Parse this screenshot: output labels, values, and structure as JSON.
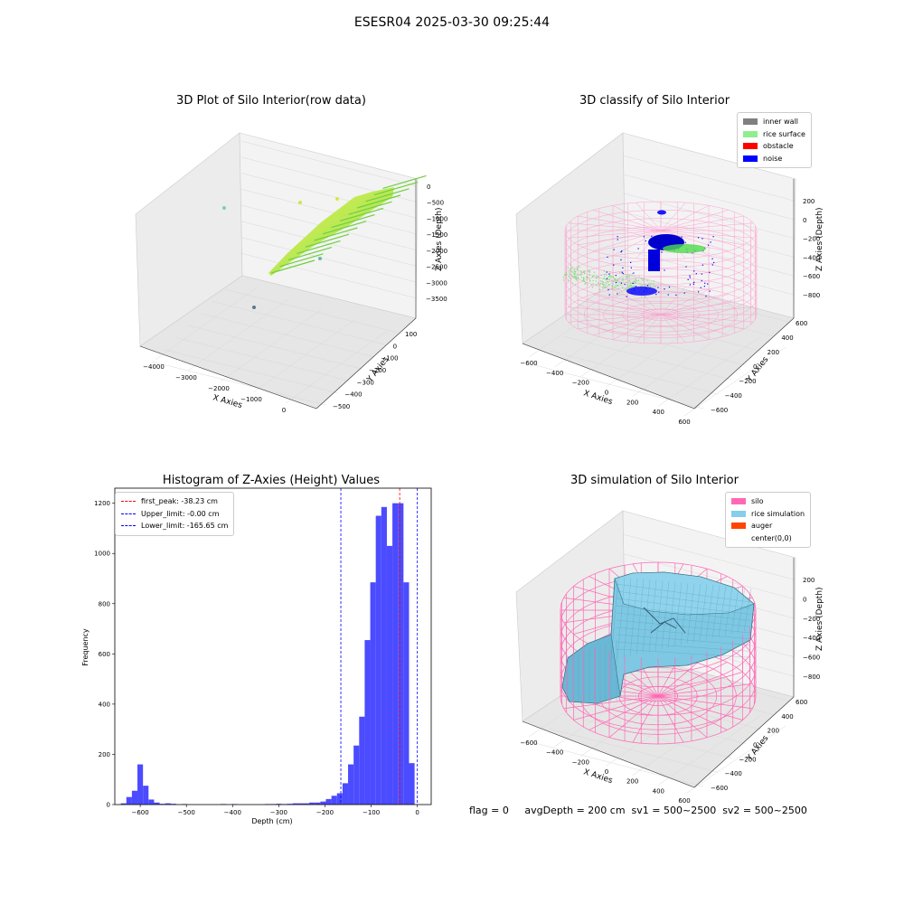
{
  "suptitle": "ESESR04 2025-03-30 09:25:44",
  "panels": {
    "raw": {
      "title": "3D Plot of Silo Interior(row data)",
      "xlabel": "X Axies",
      "ylabel": "Y Axies",
      "zlabel": "Z Axies (Depth)",
      "xticks": [
        "−4000",
        "−3000",
        "−2000",
        "−1000",
        "0"
      ],
      "yticks": [
        "−500",
        "−400",
        "−300",
        "−200",
        "−100",
        "0",
        "100"
      ],
      "zticks": [
        "0",
        "−500",
        "−1000",
        "−1500",
        "−2000",
        "−2500",
        "−3000",
        "−3500"
      ]
    },
    "classify": {
      "title": "3D classify of Silo Interior",
      "xlabel": "X Axies",
      "ylabel": "Y Axies",
      "zlabel": "Z Axies (Depth)",
      "xticks": [
        "−600",
        "−400",
        "−200",
        "0",
        "200",
        "400",
        "600"
      ],
      "yticks": [
        "−600",
        "−400",
        "−200",
        "0",
        "200",
        "400",
        "600"
      ],
      "zticks": [
        "200",
        "0",
        "−200",
        "−400",
        "−600",
        "−800"
      ],
      "legend": [
        {
          "label": "inner wall",
          "color": "#808080"
        },
        {
          "label": "rice surface",
          "color": "#90ee90"
        },
        {
          "label": "obstacle",
          "color": "#ff0000"
        },
        {
          "label": "noise",
          "color": "#0000ff"
        }
      ]
    },
    "simulation": {
      "title": "3D simulation of Silo Interior",
      "xlabel": "X Axies",
      "ylabel": "Y Axies",
      "zlabel": "Z Axies (Depth)",
      "xticks": [
        "−600",
        "−400",
        "−200",
        "0",
        "200",
        "400",
        "600"
      ],
      "yticks": [
        "−600",
        "−400",
        "−200",
        "0",
        "200",
        "400",
        "600"
      ],
      "zticks": [
        "200",
        "0",
        "−200",
        "−400",
        "−600",
        "−800"
      ],
      "legend": [
        {
          "label": "silo",
          "color": "#ff69b4"
        },
        {
          "label": "rice simulation",
          "color": "#87ceeb"
        },
        {
          "label": "auger",
          "color": "#ff4500"
        },
        {
          "label": "center(0,0)",
          "color": "#ffffff"
        }
      ]
    }
  },
  "chart_data": {
    "type": "bar",
    "title": "Histogram of Z-Axies (Height) Values",
    "xlabel": "Depth (cm)",
    "ylabel": "Frequency",
    "xlim": [
      -655,
      30
    ],
    "ylim": [
      0,
      1260
    ],
    "xticks": [
      -600,
      -500,
      -400,
      -300,
      -200,
      -100,
      0
    ],
    "yticks": [
      0,
      200,
      400,
      600,
      800,
      1000,
      1200
    ],
    "bin_width": 12,
    "bar_color": "#4b4bff",
    "bins": [
      [
        -642,
        5
      ],
      [
        -630,
        30
      ],
      [
        -618,
        55
      ],
      [
        -606,
        160
      ],
      [
        -594,
        75
      ],
      [
        -582,
        20
      ],
      [
        -570,
        8
      ],
      [
        -558,
        3
      ],
      [
        -546,
        5
      ],
      [
        -534,
        3
      ],
      [
        -510,
        2
      ],
      [
        -426,
        2
      ],
      [
        -402,
        2
      ],
      [
        -330,
        2
      ],
      [
        -318,
        2
      ],
      [
        -306,
        3
      ],
      [
        -294,
        2
      ],
      [
        -282,
        3
      ],
      [
        -270,
        5
      ],
      [
        -258,
        5
      ],
      [
        -246,
        5
      ],
      [
        -234,
        8
      ],
      [
        -222,
        8
      ],
      [
        -210,
        12
      ],
      [
        -198,
        22
      ],
      [
        -186,
        35
      ],
      [
        -174,
        45
      ],
      [
        -162,
        85
      ],
      [
        -150,
        160
      ],
      [
        -138,
        235
      ],
      [
        -126,
        350
      ],
      [
        -114,
        655
      ],
      [
        -102,
        885
      ],
      [
        -90,
        1150
      ],
      [
        -78,
        1185
      ],
      [
        -66,
        1030
      ],
      [
        -54,
        1200
      ],
      [
        -42,
        1200
      ],
      [
        -30,
        885
      ],
      [
        -18,
        165
      ]
    ],
    "lines": [
      {
        "label": "first_peak: -38.23 cm",
        "x": -38.23,
        "color": "#ff0000"
      },
      {
        "label": "Upper_limit: -0.00 cm",
        "x": -0.0,
        "color": "#0000ff"
      },
      {
        "label": "Lower_limit: -165.65 cm",
        "x": -165.65,
        "color": "#0000ff"
      }
    ],
    "legend_position": "top-left"
  },
  "footer": {
    "text": "flag = 0     avgDepth = 200 cm  sv1 = 500~2500  sv2 = 500~2500"
  }
}
